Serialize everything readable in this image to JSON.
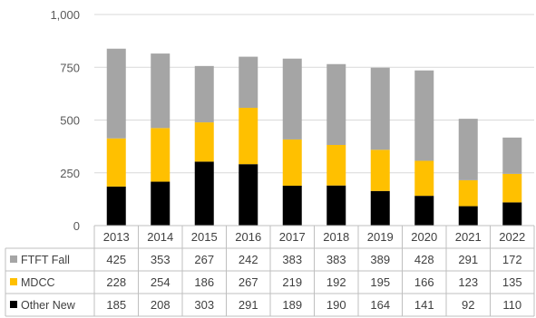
{
  "chart_data": {
    "type": "bar",
    "stacked": true,
    "title": "",
    "xlabel": "",
    "ylabel": "",
    "categories": [
      "2013",
      "2014",
      "2015",
      "2016",
      "2017",
      "2018",
      "2019",
      "2020",
      "2021",
      "2022"
    ],
    "series": [
      {
        "name": "Other New",
        "color": "#000000",
        "values": [
          185,
          208,
          303,
          291,
          189,
          190,
          164,
          141,
          92,
          110
        ]
      },
      {
        "name": "MDCC",
        "color": "#FFC000",
        "values": [
          228,
          254,
          186,
          267,
          219,
          192,
          195,
          166,
          123,
          135
        ]
      },
      {
        "name": "FTFT Fall",
        "color": "#A5A5A5",
        "values": [
          425,
          353,
          267,
          242,
          383,
          383,
          389,
          428,
          291,
          172
        ]
      }
    ],
    "table_row_order": [
      "FTFT Fall",
      "MDCC",
      "Other New"
    ],
    "y_ticks": [
      "0",
      "250",
      "500",
      "750",
      "1,000"
    ],
    "y_tick_values": [
      0,
      250,
      500,
      750,
      1000
    ],
    "ylim": [
      0,
      1000
    ],
    "grid": true,
    "legend": "data-table"
  }
}
